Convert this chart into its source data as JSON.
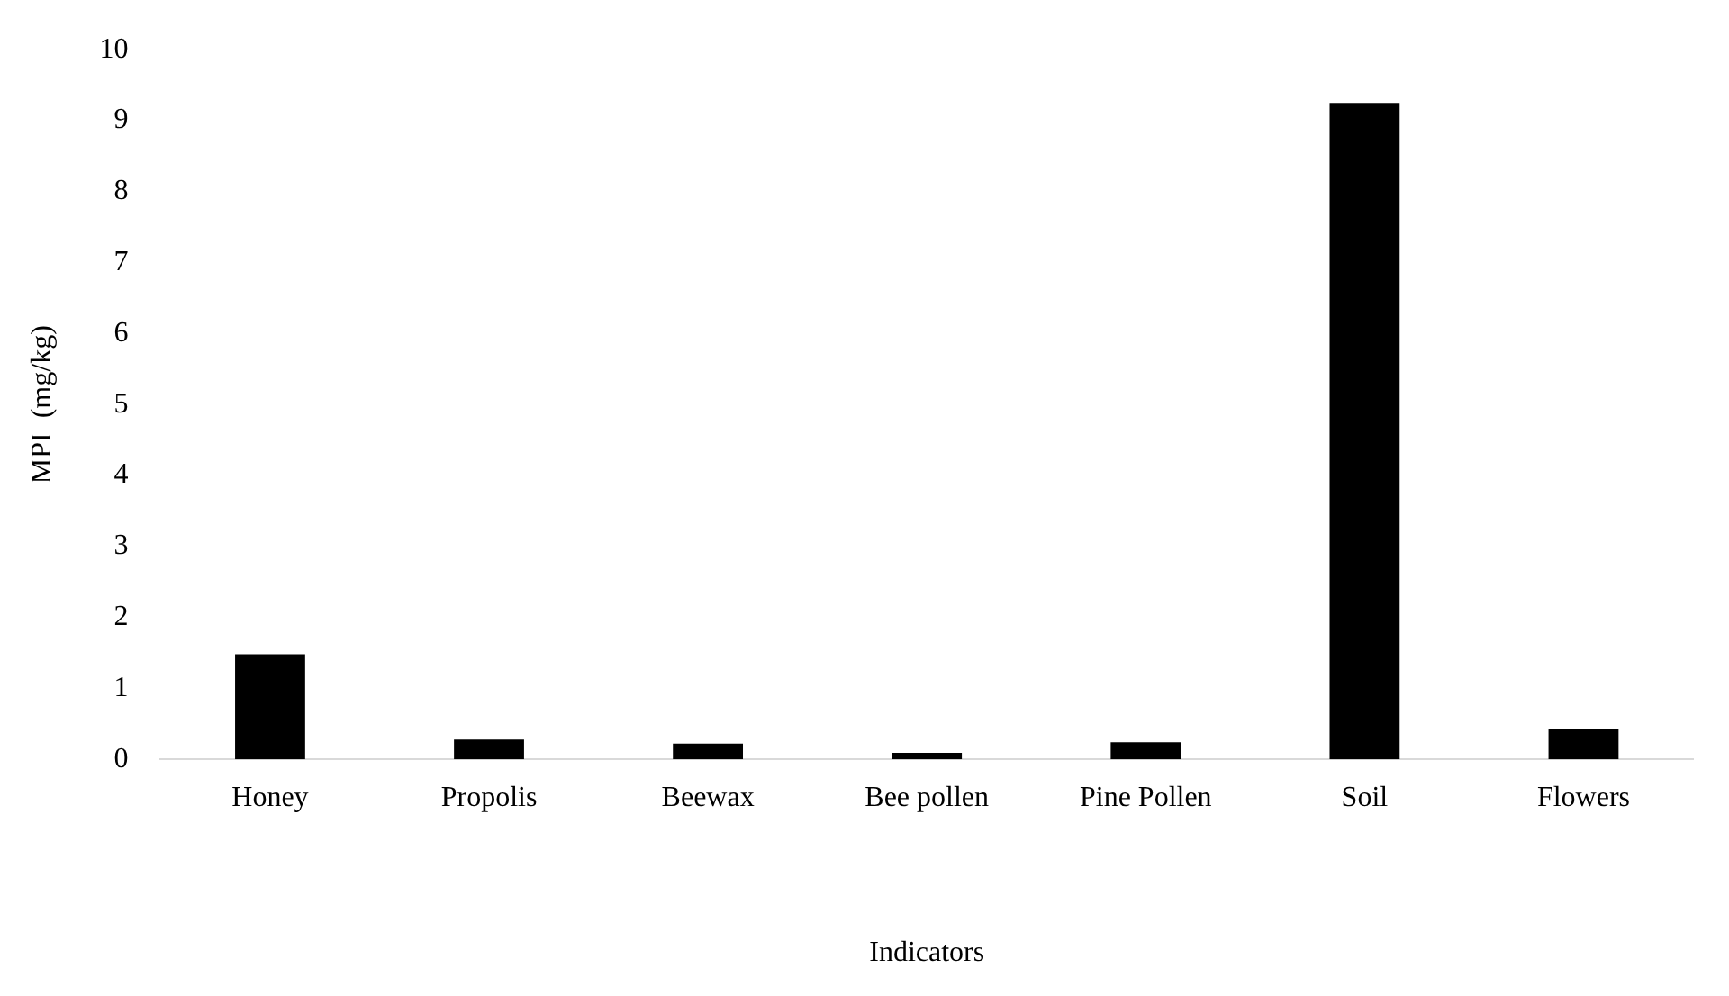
{
  "chart_data": {
    "type": "bar",
    "xlabel": "Indicators",
    "ylabel": "MPI  (mg/kg)",
    "categories": [
      "Honey",
      "Propolis",
      "Beewax",
      "Bee pollen",
      "Pine Pollen",
      "Soil",
      "Flowers"
    ],
    "values": [
      1.48,
      0.28,
      0.22,
      0.09,
      0.24,
      9.25,
      0.43
    ],
    "color": "#000000",
    "ylim": [
      0,
      10
    ],
    "yticks": [
      0,
      1,
      2,
      3,
      4,
      5,
      6,
      7,
      8,
      9,
      10
    ],
    "grid": false,
    "legend": false
  }
}
